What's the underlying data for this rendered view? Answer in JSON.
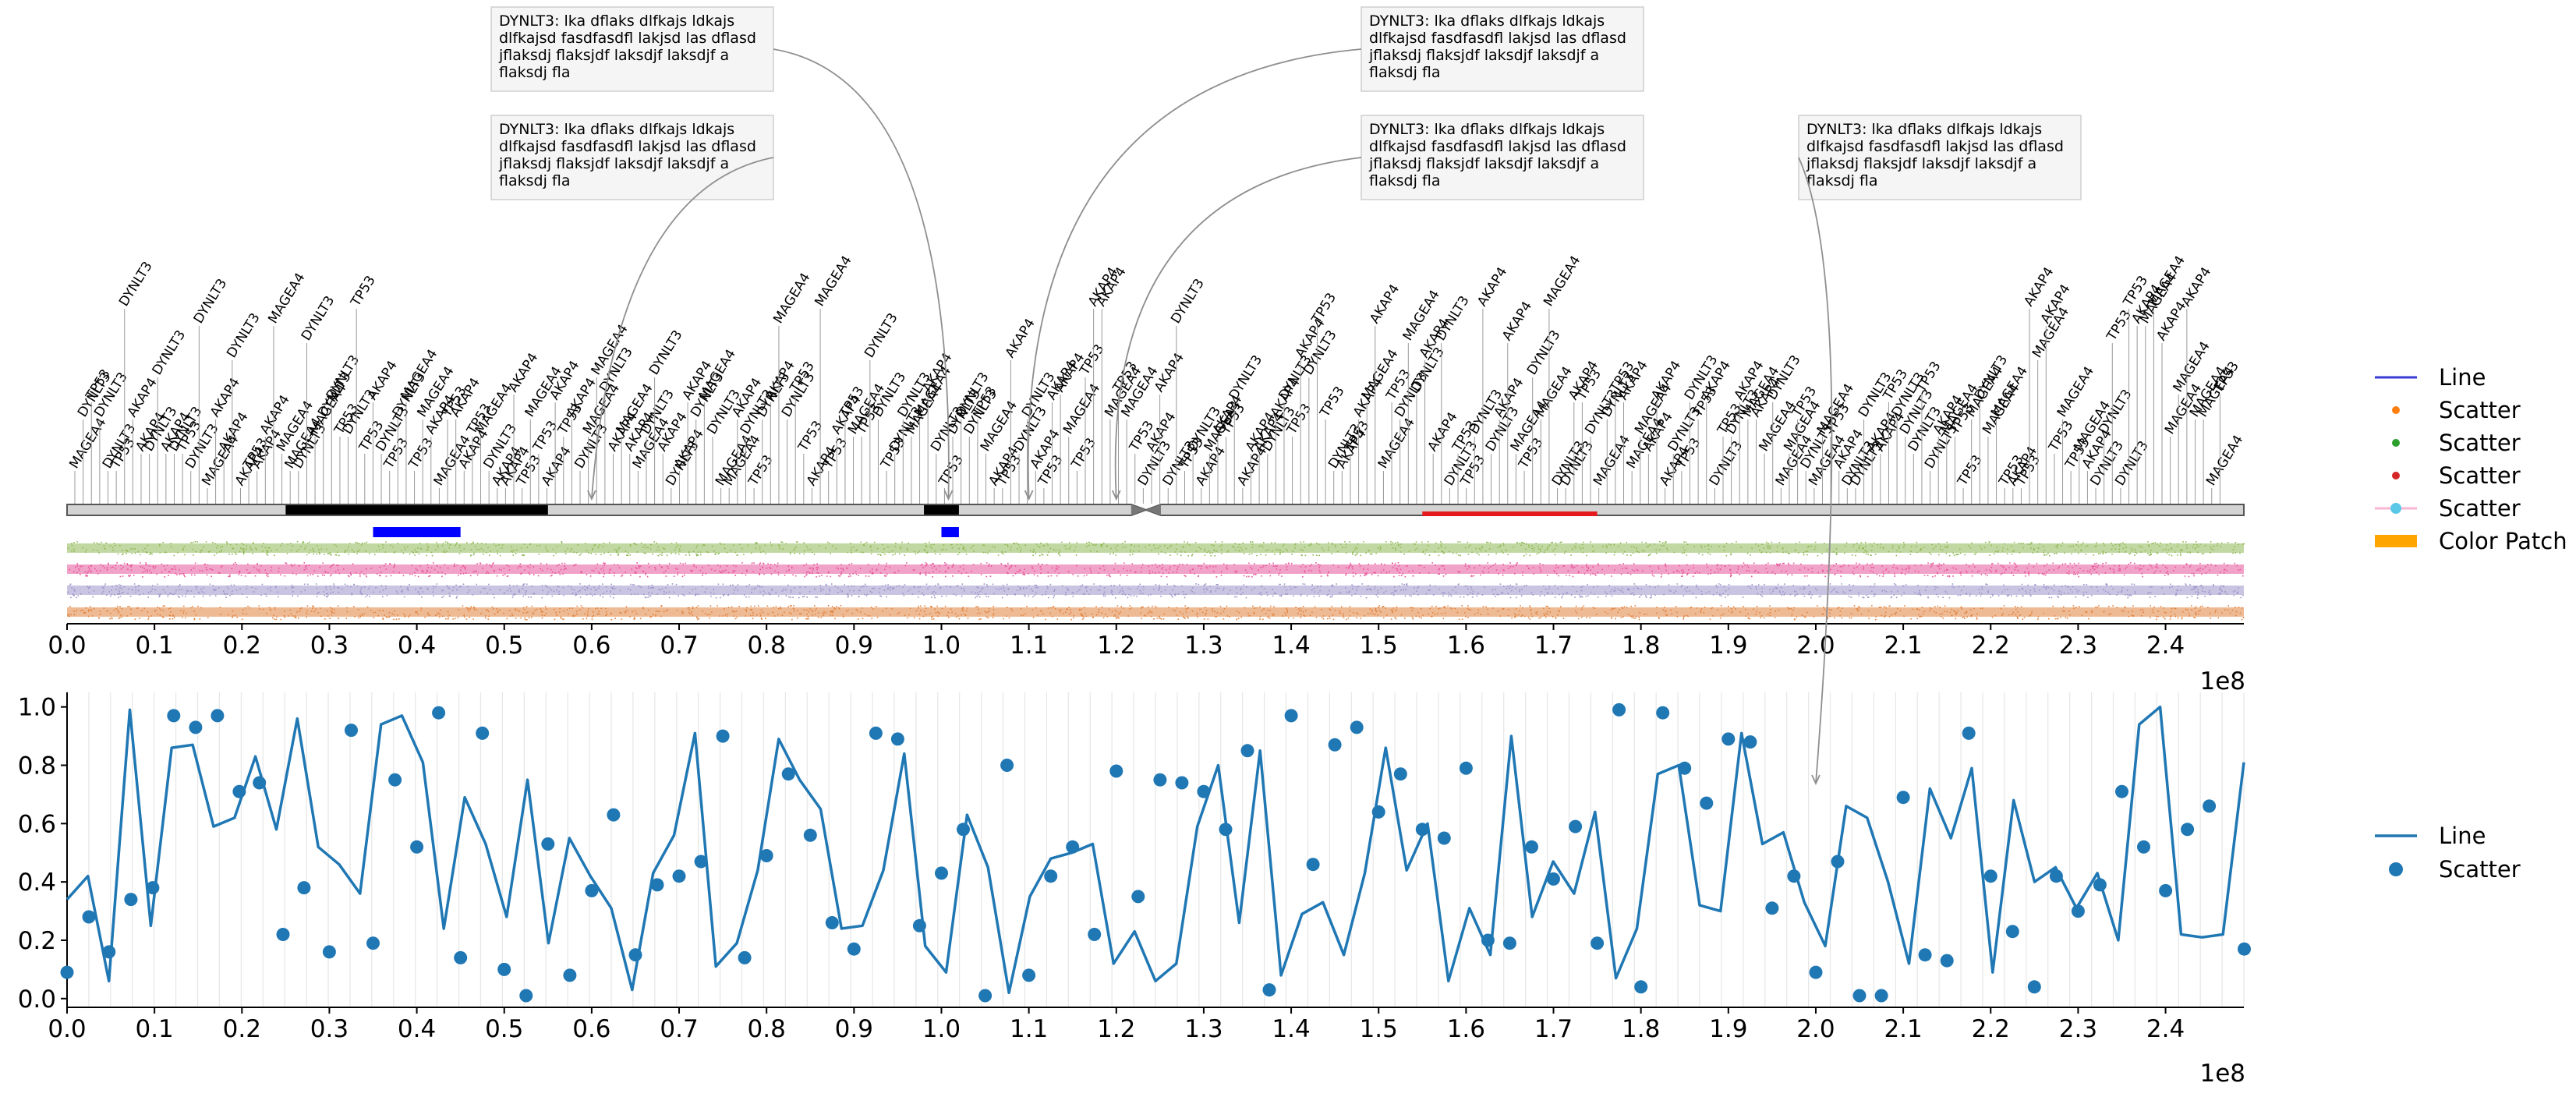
{
  "chart_data": [
    {
      "type": "genome-track",
      "x_offset_label": "1e8",
      "xlim": [
        0,
        248956422
      ],
      "x_ticks": [
        0.0,
        0.1,
        0.2,
        0.3,
        0.4,
        0.5,
        0.6,
        0.7,
        0.8,
        0.9,
        1.0,
        1.1,
        1.2,
        1.3,
        1.4,
        1.5,
        1.6,
        1.7,
        1.8,
        1.9,
        2.0,
        2.1,
        2.2,
        2.3,
        2.4
      ],
      "x_tick_labels": [
        "0.0",
        "0.1",
        "0.2",
        "0.3",
        "0.4",
        "0.5",
        "0.6",
        "0.7",
        "0.8",
        "0.9",
        "1.0",
        "1.1",
        "1.2",
        "1.3",
        "1.4",
        "1.5",
        "1.6",
        "1.7",
        "1.8",
        "1.9",
        "2.0",
        "2.1",
        "2.2",
        "2.3",
        "2.4"
      ],
      "gene_names": [
        "TP53",
        "AKAP4",
        "MAGEA4",
        "DYNLT3"
      ],
      "gene_label_count": 260,
      "ideogram": {
        "centromere": [
          121700000,
          125100000
        ],
        "dark_bands": [
          [
            25000000,
            55000000
          ],
          [
            98000000,
            102000000
          ]
        ],
        "highlight_band": {
          "range": [
            155000000,
            175000000
          ],
          "color": "#e41a1c"
        }
      },
      "blue_segments": [
        [
          35000000,
          45000000
        ],
        [
          100000000,
          102000000
        ]
      ],
      "scatter_tracks": [
        {
          "name": "Scatter",
          "color": "#8fb856"
        },
        {
          "name": "Scatter",
          "color": "#e6559a"
        },
        {
          "name": "Scatter",
          "color": "#9d94c8"
        },
        {
          "name": "Scatter",
          "color": "#e0823d"
        }
      ],
      "annotations": [
        {
          "text": [
            "DYNLT3: lka dflaks dlfkajs ldkajs",
            "dlfkajsd fasdfasdfl lakjsd las dflasd",
            "jflaksdj flaksjdf laksdjf laksdjf a",
            "flaksdj fla"
          ],
          "target_x": 100800000
        },
        {
          "text": [
            "DYNLT3: lka dflaks dlfkajs ldkajs",
            "dlfkajsd fasdfasdfl lakjsd las dflasd",
            "jflaksdj flaksjdf laksdjf laksdjf a",
            "flaksdj fla"
          ],
          "target_x": 60000000
        },
        {
          "text": [
            "DYNLT3: lka dflaks dlfkajs ldkajs",
            "dlfkajsd fasdfasdfl lakjsd las dflasd",
            "jflaksdj flaksjdf laksdjf laksdjf a",
            "flaksdj fla"
          ],
          "target_x": 110000000
        },
        {
          "text": [
            "DYNLT3: lka dflaks dlfkajs ldkajs",
            "dlfkajsd fasdfasdfl lakjsd las dflasd",
            "jflaksdj flaksjdf laksdjf laksdjf a",
            "flaksdj fla"
          ],
          "target_x": 120000000
        },
        {
          "text": [
            "DYNLT3: lka dflaks dlfkajs ldkajs",
            "dlfkajsd fasdfasdfl lakjsd las dflasd",
            "jflaksdj flaksjdf laksdjf laksdjf a",
            "flaksdj fla"
          ],
          "target_x": 200000000
        }
      ],
      "legend": [
        {
          "label": "Line",
          "kind": "line",
          "color": "#3b3bd6"
        },
        {
          "label": "Scatter",
          "kind": "dot",
          "color": "#ff7f0e"
        },
        {
          "label": "Scatter",
          "kind": "dot",
          "color": "#2ca02c"
        },
        {
          "label": "Scatter",
          "kind": "dot",
          "color": "#d62728"
        },
        {
          "label": "Scatter",
          "kind": "linedot",
          "color": "#f7b6d2",
          "marker_color": "#5bc8e8"
        },
        {
          "label": "Color Patch",
          "kind": "patch",
          "color": "#ffa500"
        }
      ]
    },
    {
      "type": "line+scatter",
      "x_offset_label": "1e8",
      "xlim": [
        0,
        248956422
      ],
      "ylim": [
        -0.03,
        1.05
      ],
      "x_ticks": [
        0.0,
        0.1,
        0.2,
        0.3,
        0.4,
        0.5,
        0.6,
        0.7,
        0.8,
        0.9,
        1.0,
        1.1,
        1.2,
        1.3,
        1.4,
        1.5,
        1.6,
        1.7,
        1.8,
        1.9,
        2.0,
        2.1,
        2.2,
        2.3,
        2.4
      ],
      "x_tick_labels": [
        "0.0",
        "0.1",
        "0.2",
        "0.3",
        "0.4",
        "0.5",
        "0.6",
        "0.7",
        "0.8",
        "0.9",
        "1.0",
        "1.1",
        "1.2",
        "1.3",
        "1.4",
        "1.5",
        "1.6",
        "1.7",
        "1.8",
        "1.9",
        "2.0",
        "2.1",
        "2.2",
        "2.3",
        "2.4"
      ],
      "y_ticks": [
        0.0,
        0.2,
        0.4,
        0.6,
        0.8,
        1.0
      ],
      "y_tick_labels": [
        "0.0",
        "0.2",
        "0.4",
        "0.6",
        "0.8",
        "1.0"
      ],
      "color": "#1f77b4",
      "line_y": [
        0.34,
        0.42,
        0.06,
        0.99,
        0.25,
        0.86,
        0.87,
        0.59,
        0.62,
        0.83,
        0.58,
        0.96,
        0.52,
        0.46,
        0.36,
        0.94,
        0.97,
        0.81,
        0.24,
        0.69,
        0.53,
        0.28,
        0.75,
        0.19,
        0.55,
        0.42,
        0.31,
        0.03,
        0.43,
        0.56,
        0.91,
        0.11,
        0.19,
        0.44,
        0.89,
        0.75,
        0.65,
        0.24,
        0.25,
        0.44,
        0.84,
        0.18,
        0.09,
        0.63,
        0.45,
        0.02,
        0.35,
        0.48,
        0.5,
        0.53,
        0.12,
        0.23,
        0.06,
        0.12,
        0.59,
        0.8,
        0.26,
        0.85,
        0.08,
        0.29,
        0.33,
        0.15,
        0.43,
        0.86,
        0.44,
        0.6,
        0.06,
        0.31,
        0.15,
        0.9,
        0.28,
        0.47,
        0.36,
        0.64,
        0.07,
        0.24,
        0.77,
        0.8,
        0.32,
        0.3,
        0.91,
        0.53,
        0.57,
        0.33,
        0.18,
        0.66,
        0.62,
        0.4,
        0.12,
        0.72,
        0.55,
        0.79,
        0.09,
        0.68,
        0.4,
        0.45,
        0.31,
        0.43,
        0.2,
        0.94,
        1.0,
        0.22,
        0.21,
        0.22,
        0.81
      ],
      "scatter_x": [
        0.0,
        0.025,
        0.048,
        0.073,
        0.098,
        0.122,
        0.147,
        0.172,
        0.197,
        0.22,
        0.247,
        0.271,
        0.3,
        0.325,
        0.35,
        0.375,
        0.4,
        0.425,
        0.45,
        0.475,
        0.5,
        0.525,
        0.55,
        0.575,
        0.6,
        0.625,
        0.65,
        0.675,
        0.7,
        0.725,
        0.75,
        0.775,
        0.8,
        0.825,
        0.85,
        0.875,
        0.9,
        0.925,
        0.95,
        0.975,
        1.0,
        1.025,
        1.05,
        1.075,
        1.1,
        1.125,
        1.15,
        1.175,
        1.2,
        1.225,
        1.25,
        1.275,
        1.3,
        1.325,
        1.35,
        1.375,
        1.4,
        1.425,
        1.45,
        1.475,
        1.5,
        1.525,
        1.55,
        1.575,
        1.6,
        1.625,
        1.65,
        1.675,
        1.7,
        1.725,
        1.75,
        1.775,
        1.8,
        1.825,
        1.85,
        1.875,
        1.9,
        1.925,
        1.95,
        1.975,
        2.0,
        2.025,
        2.05,
        2.075,
        2.1,
        2.125,
        2.15,
        2.175,
        2.2,
        2.225,
        2.25,
        2.275,
        2.3,
        2.325,
        2.35,
        2.375,
        2.4,
        2.425,
        2.45,
        2.49
      ],
      "scatter_y": [
        0.09,
        0.28,
        0.16,
        0.34,
        0.38,
        0.97,
        0.93,
        0.97,
        0.71,
        0.74,
        0.22,
        0.38,
        0.16,
        0.92,
        0.19,
        0.75,
        0.52,
        0.98,
        0.14,
        0.91,
        0.1,
        0.01,
        0.53,
        0.08,
        0.37,
        0.63,
        0.15,
        0.39,
        0.42,
        0.47,
        0.9,
        0.14,
        0.49,
        0.77,
        0.56,
        0.26,
        0.17,
        0.91,
        0.89,
        0.25,
        0.43,
        0.58,
        0.01,
        0.8,
        0.08,
        0.42,
        0.52,
        0.22,
        0.78,
        0.35,
        0.75,
        0.74,
        0.71,
        0.58,
        0.85,
        0.03,
        0.97,
        0.46,
        0.87,
        0.93,
        0.64,
        0.77,
        0.58,
        0.55,
        0.79,
        0.2,
        0.19,
        0.52,
        0.41,
        0.59,
        0.19,
        0.99,
        0.04,
        0.98,
        0.79,
        0.67,
        0.89,
        0.88,
        0.31,
        0.42,
        0.09,
        0.47,
        0.01,
        0.01,
        0.69,
        0.15,
        0.13,
        0.91,
        0.42,
        0.23,
        0.04,
        0.42,
        0.3,
        0.39,
        0.71,
        0.52,
        0.37,
        0.58,
        0.66,
        0.17
      ],
      "legend": [
        {
          "label": "Line",
          "kind": "line",
          "color": "#1f77b4"
        },
        {
          "label": "Scatter",
          "kind": "dot",
          "color": "#1f77b4"
        }
      ]
    }
  ]
}
